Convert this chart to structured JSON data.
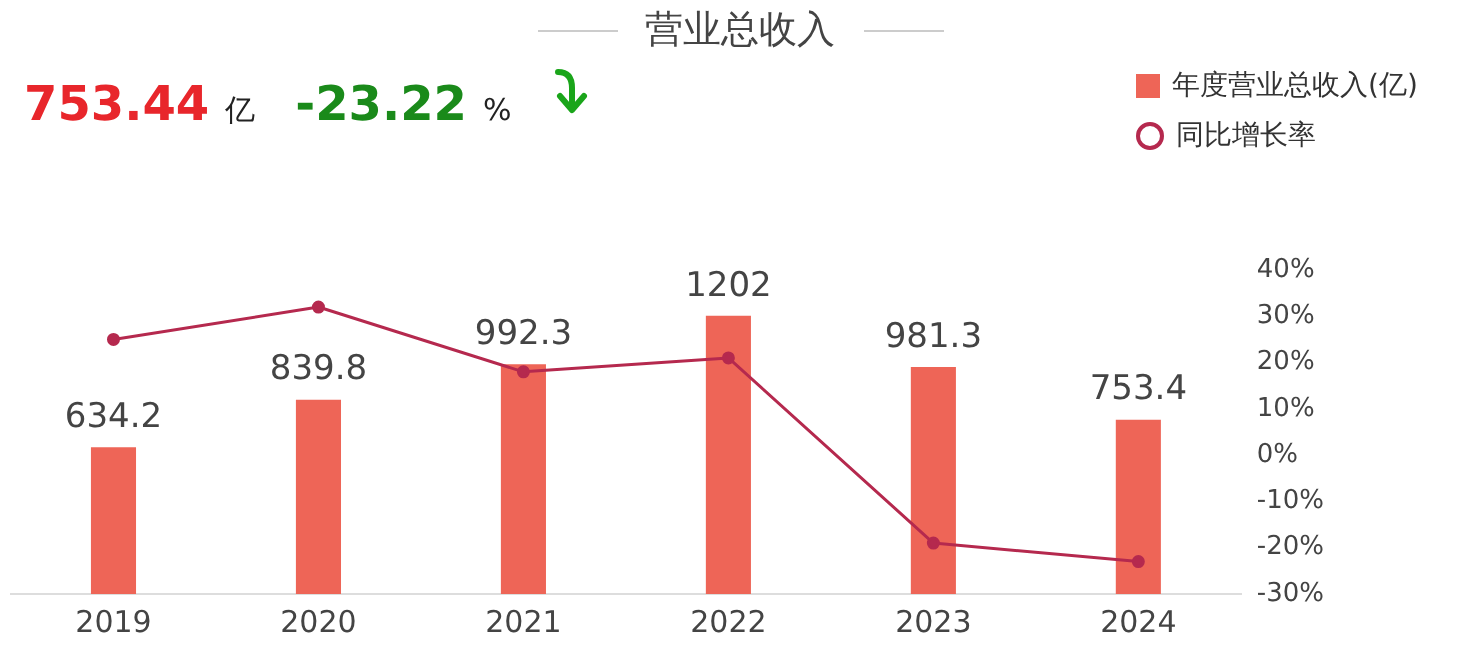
{
  "chart_data": {
    "type": "bar",
    "title": "营业总收入",
    "annotations": [
      "753.44",
      "亿",
      "-23.22",
      "%"
    ],
    "categories": [
      "2019",
      "2020",
      "2021",
      "2022",
      "2023",
      "2024"
    ],
    "series": [
      {
        "name": "年度营业总收入(亿)",
        "color": "#ee6557",
        "values": [
          634.2,
          839.8,
          992.3,
          1202,
          981.3,
          753.4
        ],
        "value_labels": [
          "634.2",
          "839.8",
          "992.3",
          "1202",
          "981.3",
          "753.4"
        ]
      },
      {
        "name": "同比增长率",
        "type": "line",
        "axis": "y2",
        "color": "#b5294e",
        "values": [
          25,
          32,
          18,
          21,
          -19,
          -23
        ]
      }
    ],
    "y2lim": [
      -30,
      40
    ],
    "y2ticks": [
      {
        "value": -30,
        "label": "-30%"
      },
      {
        "value": -20,
        "label": "-20%"
      },
      {
        "value": -10,
        "label": "-10%"
      },
      {
        "value": 0,
        "label": "0%"
      },
      {
        "value": 10,
        "label": "10%"
      },
      {
        "value": 20,
        "label": "20%"
      },
      {
        "value": 30,
        "label": "30%"
      },
      {
        "value": 40,
        "label": "40%"
      }
    ],
    "grid": false,
    "legend": "top right",
    "marker": "circle",
    "line_style": "solid"
  }
}
